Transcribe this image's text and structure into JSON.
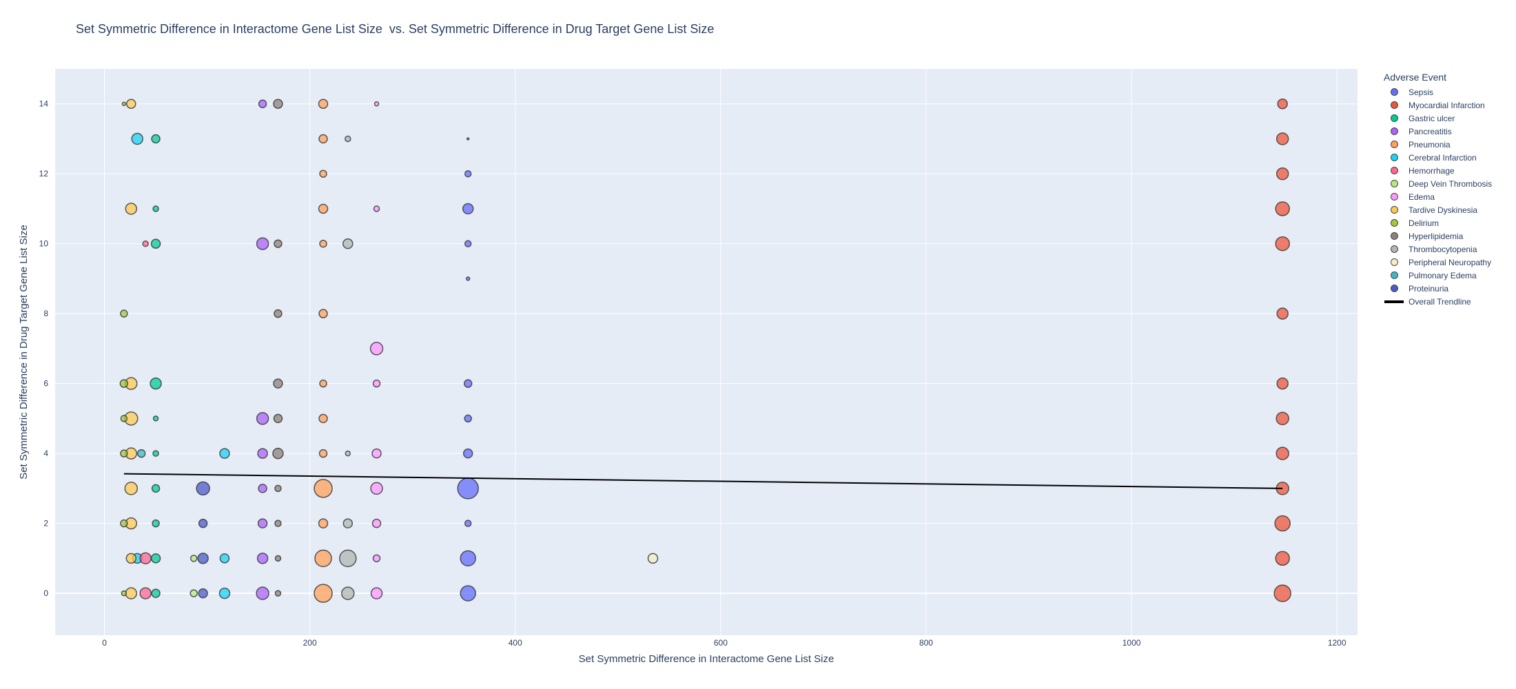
{
  "chart_data": {
    "type": "scatter",
    "title": "Set Symmetric Difference in Interactome Gene List Size  vs. Set Symmetric Difference in Drug Target Gene List Size",
    "xlabel": "Set Symmetric Difference in Interactome Gene List Size",
    "ylabel": "Set Symmetric Difference in Drug Target Gene List Size",
    "xlim": [
      -48,
      1220
    ],
    "ylim": [
      -1.2,
      15
    ],
    "x_ticks": [
      0,
      200,
      400,
      600,
      800,
      1000,
      1200
    ],
    "y_ticks": [
      0,
      2,
      4,
      6,
      8,
      10,
      12,
      14
    ],
    "grid": true,
    "legend_title": "Adverse Event",
    "legend_position": "right",
    "series": [
      {
        "name": "Sepsis",
        "color": "#636efa",
        "points": [
          [
            354,
            0,
            22
          ],
          [
            354,
            1,
            22
          ],
          [
            354,
            2,
            9
          ],
          [
            354,
            3,
            30
          ],
          [
            354,
            4,
            13
          ],
          [
            354,
            5,
            10
          ],
          [
            354,
            6,
            11
          ],
          [
            354,
            10,
            9
          ],
          [
            354,
            11,
            15
          ],
          [
            354,
            12,
            9
          ],
          [
            354,
            13,
            3
          ],
          [
            354,
            9,
            5
          ]
        ]
      },
      {
        "name": "Myocardial Infarction",
        "color": "#ef553b",
        "points": [
          [
            1147,
            0,
            24
          ],
          [
            1147,
            1,
            20
          ],
          [
            1147,
            2,
            22
          ],
          [
            1147,
            3,
            18
          ],
          [
            1147,
            4,
            18
          ],
          [
            1147,
            5,
            18
          ],
          [
            1147,
            6,
            16
          ],
          [
            1147,
            8,
            16
          ],
          [
            1147,
            10,
            20
          ],
          [
            1147,
            11,
            20
          ],
          [
            1147,
            12,
            17
          ],
          [
            1147,
            13,
            17
          ],
          [
            1147,
            14,
            14
          ]
        ]
      },
      {
        "name": "Gastric ulcer",
        "color": "#00cc96",
        "points": [
          [
            50,
            0,
            12
          ],
          [
            50,
            1,
            13
          ],
          [
            50,
            2,
            10
          ],
          [
            50,
            3,
            11
          ],
          [
            50,
            4,
            8
          ],
          [
            50,
            5,
            7
          ],
          [
            50,
            6,
            16
          ],
          [
            50,
            10,
            13
          ],
          [
            50,
            11,
            8
          ],
          [
            50,
            13,
            12
          ]
        ]
      },
      {
        "name": "Pancreatitis",
        "color": "#ab63fa",
        "points": [
          [
            154,
            0,
            18
          ],
          [
            154,
            1,
            15
          ],
          [
            154,
            2,
            13
          ],
          [
            154,
            3,
            12
          ],
          [
            154,
            4,
            14
          ],
          [
            154,
            5,
            17
          ],
          [
            154,
            10,
            17
          ],
          [
            154,
            14,
            11
          ]
        ]
      },
      {
        "name": "Pneumonia",
        "color": "#ffa15a",
        "points": [
          [
            213,
            0,
            26
          ],
          [
            213,
            1,
            24
          ],
          [
            213,
            2,
            13
          ],
          [
            213,
            3,
            26
          ],
          [
            213,
            4,
            11
          ],
          [
            213,
            5,
            12
          ],
          [
            213,
            6,
            10
          ],
          [
            213,
            8,
            12
          ],
          [
            213,
            10,
            10
          ],
          [
            213,
            11,
            13
          ],
          [
            213,
            12,
            10
          ],
          [
            213,
            13,
            12
          ],
          [
            213,
            14,
            13
          ]
        ]
      },
      {
        "name": "Cerebral Infarction",
        "color": "#19d3f3",
        "points": [
          [
            117,
            0,
            15
          ],
          [
            117,
            1,
            13
          ],
          [
            117,
            4,
            14
          ],
          [
            32,
            1,
            14
          ],
          [
            32,
            13,
            16
          ]
        ]
      },
      {
        "name": "Hemorrhage",
        "color": "#ff6692",
        "points": [
          [
            40,
            0,
            16
          ],
          [
            40,
            1,
            16
          ],
          [
            40,
            10,
            8
          ]
        ]
      },
      {
        "name": "Deep Vein Thrombosis",
        "color": "#b6e880",
        "points": [
          [
            87,
            0,
            10
          ],
          [
            87,
            1,
            9
          ]
        ]
      },
      {
        "name": "Edema",
        "color": "#ff97ff",
        "points": [
          [
            265,
            0,
            16
          ],
          [
            265,
            1,
            10
          ],
          [
            265,
            2,
            12
          ],
          [
            265,
            3,
            17
          ],
          [
            265,
            4,
            13
          ],
          [
            265,
            6,
            10
          ],
          [
            265,
            7,
            18
          ],
          [
            265,
            11,
            8
          ],
          [
            265,
            14,
            6
          ]
        ]
      },
      {
        "name": "Tardive Dyskinesia",
        "color": "#fecb52",
        "points": [
          [
            26,
            0,
            16
          ],
          [
            26,
            1,
            14
          ],
          [
            26,
            2,
            16
          ],
          [
            26,
            3,
            18
          ],
          [
            26,
            4,
            16
          ],
          [
            26,
            5,
            19
          ],
          [
            26,
            6,
            17
          ],
          [
            26,
            11,
            16
          ],
          [
            26,
            14,
            13
          ]
        ]
      },
      {
        "name": "Delirium",
        "color": "#a5c73a",
        "points": [
          [
            19,
            0,
            7
          ],
          [
            19,
            2,
            10
          ],
          [
            19,
            4,
            10
          ],
          [
            19,
            5,
            9
          ],
          [
            19,
            6,
            11
          ],
          [
            19,
            8,
            10
          ],
          [
            19,
            14,
            5
          ]
        ]
      },
      {
        "name": "Hyperlipidemia",
        "color": "#8c8278",
        "points": [
          [
            169,
            0,
            8
          ],
          [
            169,
            1,
            8
          ],
          [
            169,
            2,
            9
          ],
          [
            169,
            3,
            9
          ],
          [
            169,
            4,
            15
          ],
          [
            169,
            5,
            12
          ],
          [
            169,
            6,
            13
          ],
          [
            169,
            8,
            11
          ],
          [
            169,
            10,
            11
          ],
          [
            169,
            14,
            13
          ]
        ]
      },
      {
        "name": "Thrombocytopenia",
        "color": "#b0b7b3",
        "points": [
          [
            237,
            0,
            18
          ],
          [
            237,
            1,
            24
          ],
          [
            237,
            2,
            13
          ],
          [
            237,
            4,
            7
          ],
          [
            237,
            10,
            14
          ],
          [
            237,
            13,
            8
          ]
        ]
      },
      {
        "name": "Peripheral Neuropathy",
        "color": "#f4eec5",
        "points": [
          [
            534,
            1,
            14
          ]
        ]
      },
      {
        "name": "Pulmonary Edema",
        "color": "#3bb9c9",
        "points": [
          [
            36,
            4,
            11
          ]
        ]
      },
      {
        "name": "Proteinuria",
        "color": "#4a5bc9",
        "points": [
          [
            96,
            0,
            13
          ],
          [
            96,
            1,
            15
          ],
          [
            96,
            2,
            12
          ],
          [
            96,
            3,
            19
          ]
        ]
      }
    ],
    "trendline": {
      "name": "Overall Trendline",
      "color": "#000000",
      "points": [
        [
          19,
          3.42
        ],
        [
          1147,
          3.0
        ]
      ]
    }
  }
}
